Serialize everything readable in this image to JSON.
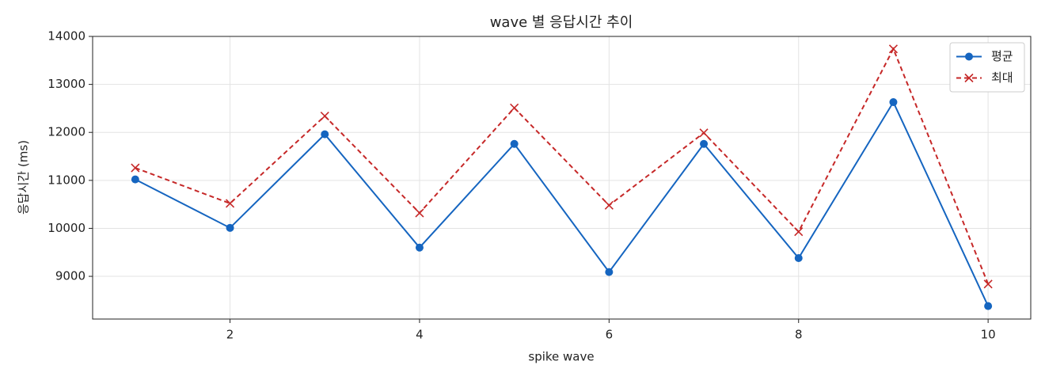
{
  "chart_data": {
    "type": "line",
    "title": "wave 별 응답시간 추이",
    "x_label": "spike wave",
    "y_label": "응답시간 (ms)",
    "x": [
      1,
      2,
      3,
      4,
      5,
      6,
      7,
      8,
      9,
      10
    ],
    "series": [
      {
        "name": "평균",
        "color": "#1565c0",
        "marker": "circle",
        "dashed": false,
        "values": [
          11020,
          10010,
          11960,
          9600,
          11760,
          9090,
          11760,
          9380,
          12630,
          8380
        ]
      },
      {
        "name": "최대",
        "color": "#c62828",
        "marker": "x",
        "dashed": true,
        "values": [
          11260,
          10520,
          12340,
          10320,
          12510,
          10480,
          11990,
          9930,
          13740,
          8840
        ]
      }
    ],
    "xlim": [
      0.55,
      10.45
    ],
    "ylim": [
      8110,
      14000
    ],
    "xticks": [
      2,
      4,
      6,
      8,
      10
    ],
    "yticks": [
      9000,
      10000,
      11000,
      12000,
      13000,
      14000
    ],
    "grid": true,
    "legend": "upper right"
  }
}
